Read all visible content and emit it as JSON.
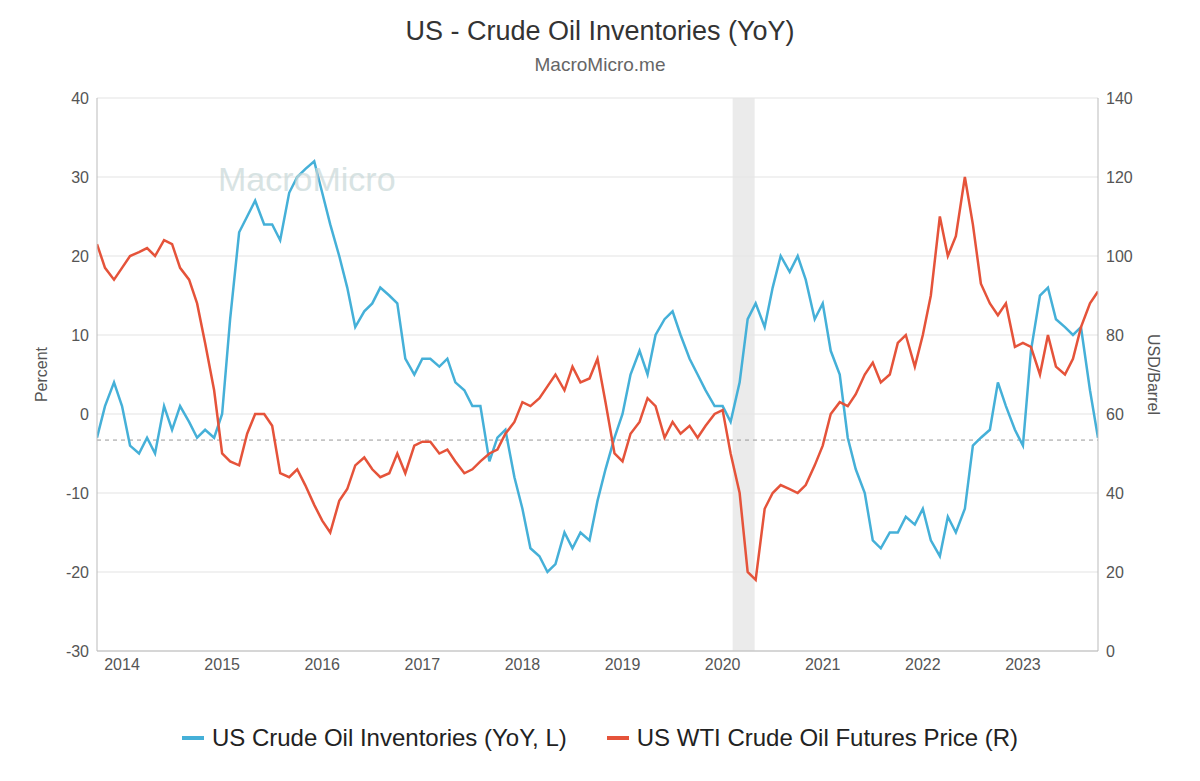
{
  "chart_data": {
    "type": "line",
    "title": "US - Crude Oil Inventories (YoY)",
    "subtitle": "MacroMicro.me",
    "annotations": [
      "MacroMicro"
    ],
    "y_label": "Percent",
    "y2_label": "USD/Barrel",
    "grid": true,
    "legend": "bottom",
    "x": [
      2013.75,
      2013.83,
      2013.92,
      2014.0,
      2014.08,
      2014.17,
      2014.25,
      2014.33,
      2014.42,
      2014.5,
      2014.58,
      2014.67,
      2014.75,
      2014.83,
      2014.92,
      2015.0,
      2015.08,
      2015.17,
      2015.25,
      2015.33,
      2015.42,
      2015.5,
      2015.58,
      2015.67,
      2015.75,
      2015.83,
      2015.92,
      2016.0,
      2016.08,
      2016.17,
      2016.25,
      2016.33,
      2016.42,
      2016.5,
      2016.58,
      2016.67,
      2016.75,
      2016.83,
      2016.92,
      2017.0,
      2017.08,
      2017.17,
      2017.25,
      2017.33,
      2017.42,
      2017.5,
      2017.58,
      2017.67,
      2017.75,
      2017.83,
      2017.92,
      2018.0,
      2018.08,
      2018.17,
      2018.25,
      2018.33,
      2018.42,
      2018.5,
      2018.58,
      2018.67,
      2018.75,
      2018.83,
      2018.92,
      2019.0,
      2019.08,
      2019.17,
      2019.25,
      2019.33,
      2019.42,
      2019.5,
      2019.58,
      2019.67,
      2019.75,
      2019.83,
      2019.92,
      2020.0,
      2020.08,
      2020.17,
      2020.25,
      2020.33,
      2020.42,
      2020.5,
      2020.58,
      2020.67,
      2020.75,
      2020.83,
      2020.92,
      2021.0,
      2021.08,
      2021.17,
      2021.25,
      2021.33,
      2021.42,
      2021.5,
      2021.58,
      2021.67,
      2021.75,
      2021.83,
      2021.92,
      2022.0,
      2022.08,
      2022.17,
      2022.25,
      2022.33,
      2022.42,
      2022.5,
      2022.58,
      2022.67,
      2022.75,
      2022.83,
      2022.92,
      2023.0,
      2023.08,
      2023.17,
      2023.25,
      2023.33,
      2023.42,
      2023.5,
      2023.58,
      2023.67,
      2023.75
    ],
    "series": [
      {
        "name": "US Crude Oil Inventories (YoY, L)",
        "color": "#45b0d8",
        "values": [
          -3,
          1,
          4,
          1,
          -4,
          -5,
          -3,
          -5,
          1,
          -2,
          1,
          -1,
          -3,
          -2,
          -3,
          0,
          12,
          23,
          25,
          27,
          24,
          24,
          22,
          28,
          30,
          31,
          32,
          28,
          24,
          20,
          16,
          11,
          13,
          14,
          16,
          15,
          14,
          7,
          5,
          7,
          7,
          6,
          7,
          4,
          3,
          1,
          1,
          -6,
          -3,
          -2,
          -8,
          -12,
          -17,
          -18,
          -20,
          -19,
          -15,
          -17,
          -15,
          -16,
          -11,
          -7,
          -3,
          0,
          5,
          8,
          5,
          10,
          12,
          13,
          10,
          7,
          5,
          3,
          1,
          1,
          -1,
          4,
          12,
          14,
          11,
          16,
          20,
          18,
          20,
          17,
          12,
          14,
          8,
          5,
          -3,
          -7,
          -10,
          -16,
          -17,
          -15,
          -15,
          -13,
          -14,
          -12,
          -16,
          -18,
          -13,
          -15,
          -12,
          -4,
          -3,
          -2,
          4,
          1,
          -2,
          -4,
          8,
          15,
          16,
          12,
          11,
          10,
          11,
          3,
          -3
        ]
      },
      {
        "name": "US WTI Crude Oil Futures Price (R)",
        "color": "#e5533a",
        "axis": "y2",
        "values": [
          103,
          97,
          94,
          97,
          100,
          101,
          102,
          100,
          104,
          103,
          97,
          94,
          88,
          78,
          66,
          50,
          48,
          47,
          55,
          60,
          60,
          57,
          45,
          44,
          46,
          42,
          37,
          33,
          30,
          38,
          41,
          47,
          49,
          46,
          44,
          45,
          50,
          45,
          52,
          53,
          53,
          50,
          51,
          48,
          45,
          46,
          48,
          50,
          51,
          55,
          58,
          63,
          62,
          64,
          67,
          70,
          66,
          72,
          68,
          69,
          74,
          63,
          50,
          48,
          55,
          58,
          64,
          62,
          54,
          58,
          55,
          57,
          54,
          57,
          60,
          61,
          50,
          40,
          20,
          18,
          36,
          40,
          42,
          41,
          40,
          42,
          47,
          52,
          60,
          63,
          62,
          65,
          70,
          73,
          68,
          70,
          78,
          80,
          72,
          80,
          90,
          110,
          100,
          105,
          120,
          108,
          93,
          88,
          85,
          88,
          77,
          78,
          77,
          70,
          80,
          72,
          70,
          74,
          82,
          88,
          91
        ]
      }
    ],
    "xlim": [
      2013.75,
      2023.75
    ],
    "xticks": [
      2014,
      2015,
      2016,
      2017,
      2018,
      2019,
      2020,
      2021,
      2022,
      2023
    ],
    "ylim": [
      -30,
      40
    ],
    "yticks": [
      -30,
      -20,
      -10,
      0,
      10,
      20,
      30,
      40
    ],
    "y2lim": [
      0,
      140
    ],
    "y2ticks": [
      0,
      20,
      40,
      60,
      80,
      100,
      120,
      140
    ],
    "recession": [
      {
        "x0": 2020.1,
        "x1": 2020.32
      }
    ],
    "reference_line": {
      "y": -3.3
    }
  }
}
